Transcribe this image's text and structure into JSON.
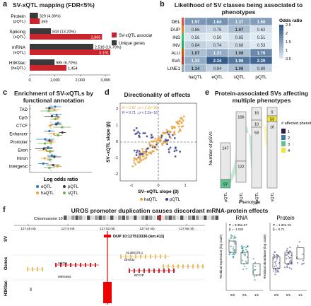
{
  "panels": {
    "a": {
      "letter": "a",
      "title": "SV-xQTL mapping (FDR<5%)",
      "rows": [
        {
          "label": "Protein",
          "sublabel": "(pQTL)",
          "assoc": 399,
          "unique": 329,
          "unique_label": "329 (4.39%)",
          "assoc_label": "399"
        },
        {
          "label": "Splicing",
          "sublabel": "(sQTL)",
          "assoc": 2866,
          "unique": 843,
          "unique_label": "843 (13.20%)",
          "assoc_label": "2,866"
        },
        {
          "label": "mRNA",
          "sublabel": "(eQTL)",
          "assoc": 3191,
          "unique": 2518,
          "unique_label": "2,518 (16.79%)",
          "assoc_label": "3,191"
        },
        {
          "label": "H3K9ac",
          "sublabel": "(haQTL)",
          "assoc": 1454,
          "unique": 985,
          "unique_label": "985 (6.70%)",
          "assoc_label": "1,454"
        }
      ],
      "axis_ticks": [
        "0",
        "1,000",
        "2,000",
        "3,000"
      ],
      "legend": [
        "SV-xQTL associations",
        "Unique genes"
      ],
      "colors": {
        "assoc": "#c8252c",
        "unique": "#3a3a3a"
      }
    },
    "b": {
      "letter": "b",
      "title": "Likelihood of SV classes being associated to phenotypes",
      "rows": [
        "DEL",
        "DUP",
        "INS",
        "INV",
        "ALU",
        "SVA",
        "LINE1"
      ],
      "cols": [
        "haQTL",
        "eQTL",
        "sQTL",
        "pQTL"
      ],
      "values": [
        [
          "1.57",
          "1.64",
          "1.37",
          "1.50"
        ],
        [
          "0.86",
          "0.75",
          "1.07",
          "0.62"
        ],
        [
          "0.56",
          "0.50",
          "0.65",
          "0.51"
        ],
        [
          "0.84",
          "0.74",
          "0.68",
          "0.53"
        ],
        [
          "1.07",
          "1.31",
          "1.08",
          "1.76"
        ],
        [
          "1.33",
          "2.34",
          "1.98",
          "2.20"
        ],
        [
          "1.14",
          "0.84",
          "1.06",
          "0.80"
        ]
      ],
      "row_colors": [
        "#e74c3c",
        "#e67e22",
        "#2ecc71",
        "#27ae60",
        "#d35400",
        "#c0392b",
        "#95a5a6"
      ],
      "legend_title": "Odds ratio",
      "legend_ticks": [
        "2.5",
        "2",
        "1.5",
        "1",
        "0.5"
      ]
    },
    "c": {
      "letter": "c",
      "title": "Enrichment of SV-xQTLs by functional annotation",
      "categories": [
        "TAD",
        "CpG",
        "CTCF",
        "Enhancer",
        "Promoter",
        "Exon",
        "Intron",
        "Intergenic"
      ],
      "xlabel": "Log odds ratio",
      "legend": [
        "eQTL",
        "pQTL",
        "haQTL",
        "sQTL"
      ],
      "colors": {
        "eQTL": "#2b7bb9",
        "pQTL": "#3a3a3a",
        "haQTL": "#e8a33d",
        "sQTL": "#6ab04c"
      }
    },
    "d": {
      "letter": "d",
      "title": "Directionality of effects",
      "annotation1": "R = 0.87 , p < 2.2e−98",
      "annotation2": "R = 0.71 , p < 2.2e−16",
      "xlabel": "SV–eQTL slope (β)",
      "ylabel": "SV–xQTL slope (β)",
      "xticks": [
        "-1",
        "0",
        "1"
      ],
      "yticks": [
        "2",
        "1",
        "0",
        "-1",
        "-2"
      ],
      "legend": [
        "haQTL",
        "pQTL"
      ],
      "colors": {
        "haQTL": "#e8a33d",
        "pQTL": "#3b3f8f"
      }
    },
    "e": {
      "letter": "e",
      "title": "Protein-associated SVs affecting multiple phenotypes",
      "ylabel": "Number of pSVs",
      "xlabel": "Phenotype",
      "columns": [
        "pQTL",
        "eQTL",
        "haQTL",
        "sQTL"
      ],
      "counts": [
        [
          "147",
          "97",
          "28"
        ],
        [
          "106",
          "122",
          "53"
        ],
        [
          "16",
          "10",
          "53"
        ],
        [
          "9",
          "53",
          "10"
        ]
      ],
      "legend_title": "# affected phenotypes",
      "legend": [
        "1",
        "2",
        "3",
        "4"
      ],
      "legend_colors": [
        "#2e1a47",
        "#3a7aa4",
        "#5fc28f",
        "#f0e442"
      ]
    },
    "f": {
      "letter": "f",
      "title": "UROS promoter duplication causes discordant mRNA-protein effects",
      "chromosome": "Chromosome 10",
      "positions": [
        "127.48 mb",
        "127.5 mb",
        "127.52 mb",
        "127.54 mb",
        "127.56 mb"
      ],
      "track_labels": [
        "SV",
        "Genes",
        "H3K9ac"
      ],
      "dup_label": "DUP 10:127513336 (len:411)",
      "genes": [
        "UROS",
        "MIR4484",
        "AL360176.1",
        "DHX32",
        "BCCIP"
      ],
      "rna": {
        "title": "RNA",
        "stat1": "P = 3.35e-57",
        "stat2": "β = -1.024",
        "ylabel": "Residual expression (log scale)",
        "xticks": [
          "0/0",
          "0/1",
          "1/1"
        ]
      },
      "protein": {
        "title": "Protein",
        "stat1": "P = 1.92e-15",
        "stat2": "β = 0.71",
        "ylabel": "Residual abundance (log scale)",
        "xticks": [
          "0/0",
          "0/1",
          "1/1"
        ]
      }
    }
  }
}
